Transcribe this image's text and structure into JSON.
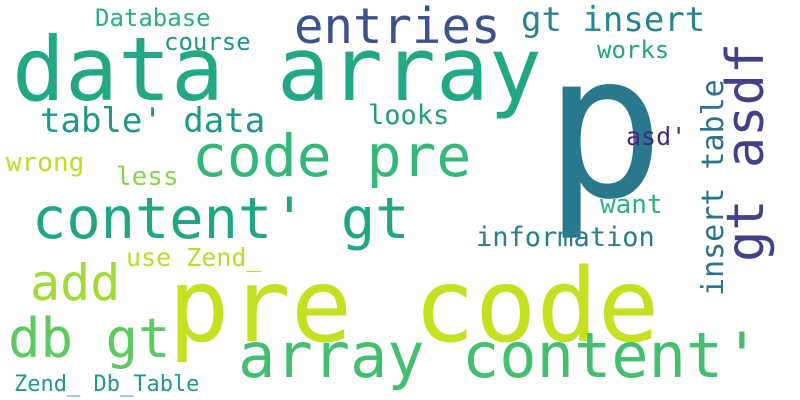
{
  "words": [
    {
      "text": "pre code",
      "color": "#c5e021"
    },
    {
      "text": "p",
      "color": "#2a788e"
    },
    {
      "text": "data array",
      "color": "#22a884"
    },
    {
      "text": "array content'",
      "color": "#44bf70"
    },
    {
      "text": "code pre",
      "color": "#35b779"
    },
    {
      "text": "content' gt",
      "color": "#21a685"
    },
    {
      "text": "entries",
      "color": "#3b528b"
    },
    {
      "text": "gt asdf",
      "color": "#424086"
    },
    {
      "text": "db gt",
      "color": "#5ec962"
    },
    {
      "text": "add",
      "color": "#a2da37"
    },
    {
      "text": "insert table",
      "color": "#2c728e"
    },
    {
      "text": "gt insert",
      "color": "#25858e"
    },
    {
      "text": "table' data",
      "color": "#1f988b"
    },
    {
      "text": "Database",
      "color": "#29af7f"
    },
    {
      "text": "course",
      "color": "#1f948c"
    },
    {
      "text": "works",
      "color": "#21a685"
    },
    {
      "text": "looks",
      "color": "#1e9c89"
    },
    {
      "text": "asd'",
      "color": "#482878"
    },
    {
      "text": "wrong",
      "color": "#bade28"
    },
    {
      "text": "less",
      "color": "#86d549"
    },
    {
      "text": "want",
      "color": "#2db27d"
    },
    {
      "text": "information",
      "color": "#287d8e"
    },
    {
      "text": "use Zend_",
      "color": "#b5de2b"
    },
    {
      "text": "Zend_ Db_Table",
      "color": "#1f9a8a"
    }
  ]
}
